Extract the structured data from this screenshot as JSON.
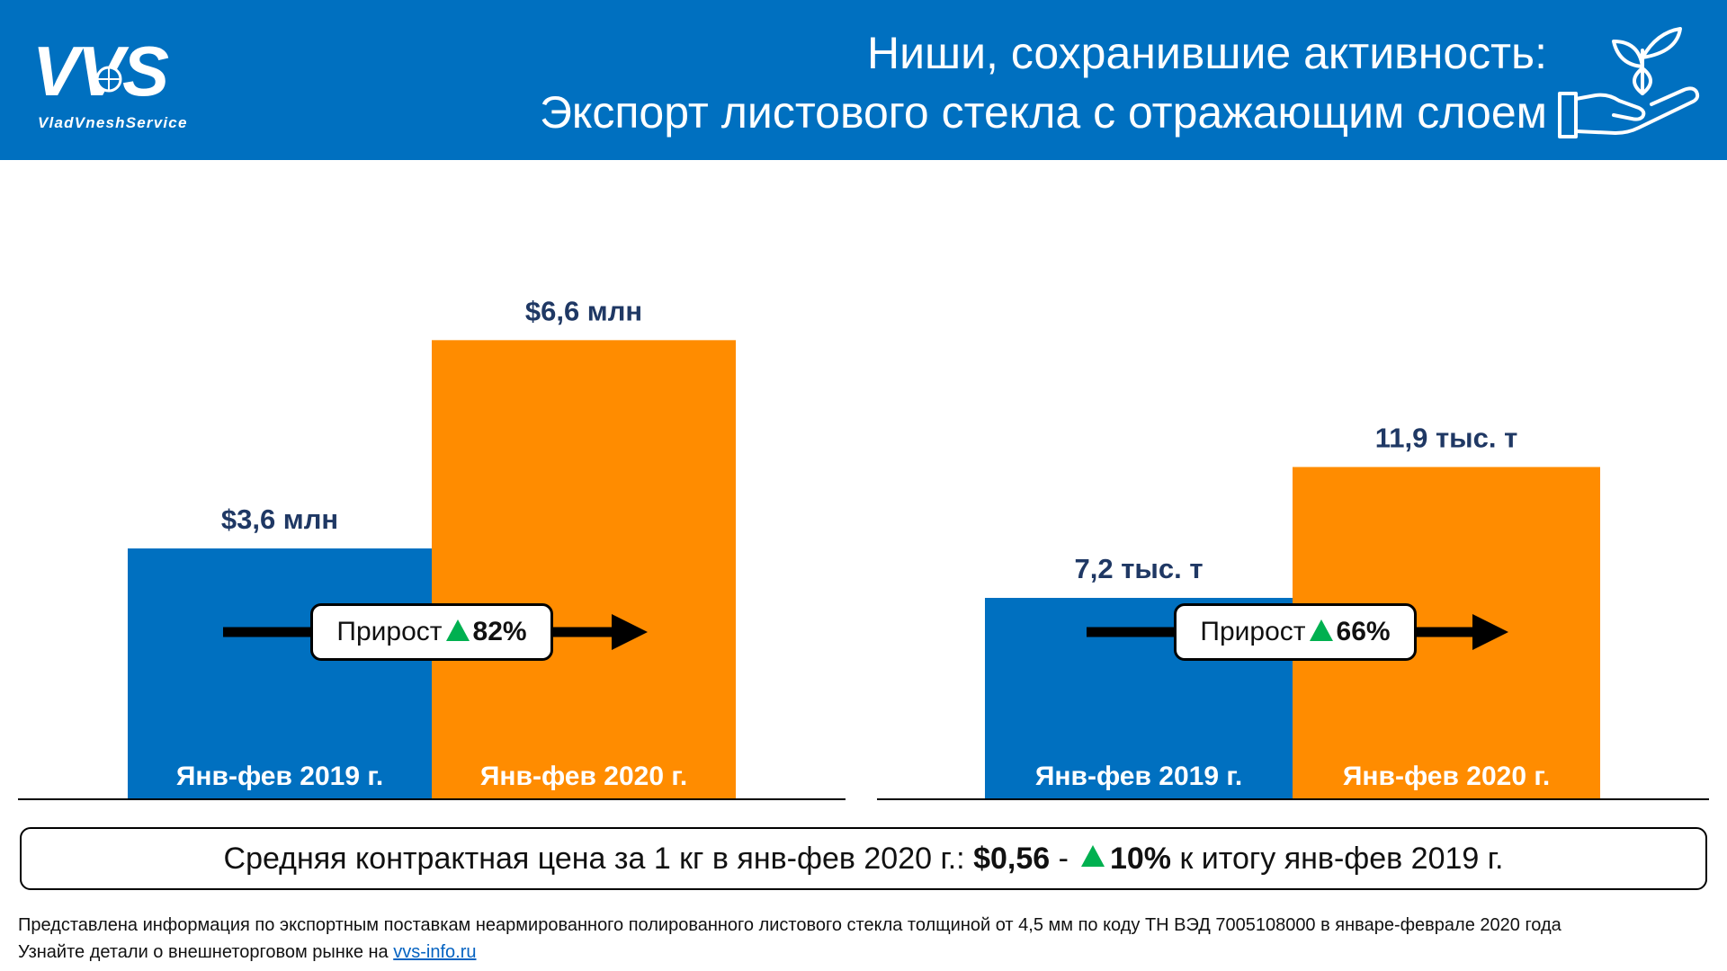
{
  "header": {
    "logo_text": "VVS",
    "logo_subtext": "VladVneshService",
    "title_line1": "Ниши, сохранившие активность:",
    "title_line2": "Экспорт листового стекла с отражающим слоем",
    "icon": "hand-with-plant-icon"
  },
  "colors": {
    "header_bg": "#0070C0",
    "bar_2019": "#0070C0",
    "bar_2020": "#FF8C00",
    "value_label": "#1F3864",
    "growth_arrow": "#00B050"
  },
  "chart_data": [
    {
      "type": "bar",
      "categories": [
        "Янв-фев 2019 г.",
        "Янв-фев 2020 г."
      ],
      "values": [
        3.6,
        6.6
      ],
      "value_labels": [
        "$3,6 млн",
        "$6,6 млн"
      ],
      "unit": "$ млн",
      "growth_label": "Прирост",
      "growth_value": "82%"
    },
    {
      "type": "bar",
      "categories": [
        "Янв-фев 2019 г.",
        "Янв-фев 2020 г."
      ],
      "values": [
        7.2,
        11.9
      ],
      "value_labels": [
        "7,2 тыс. т",
        "11,9 тыс. т"
      ],
      "unit": "тыс. т",
      "growth_label": "Прирост",
      "growth_value": "66%"
    }
  ],
  "price_summary": {
    "text_before": "Средняя контрактная цена за 1 кг в янв-фев 2020 г.:",
    "price": "$0,56",
    "separator": "-",
    "change": "10%",
    "text_after": "к итогу янв-фев 2019 г."
  },
  "footer": {
    "note": "Представлена информация по экспортным поставкам неармированного полированного листового стекла толщиной от 4,5 мм по коду ТН ВЭД 7005108000 в январе-феврале 2020 года",
    "link_prefix": "Узнайте детали о внешнеторговом рынке на",
    "link_text": "vvs-info.ru"
  }
}
